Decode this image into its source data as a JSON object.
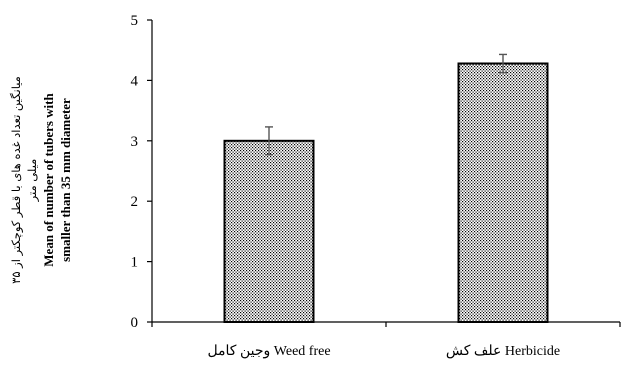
{
  "chart_data": {
    "type": "bar",
    "categories": [
      "وجین کامل Weed free",
      "علف کش Herbicide"
    ],
    "values": [
      3.0,
      4.28
    ],
    "error": [
      0.23,
      0.15
    ],
    "ylabel_fa_line1": "میانگین تعداد غده های با قطر کوچکتر از ۳۵",
    "ylabel_fa_line2": "میلی متر",
    "ylabel_en_line1": "Mean of number of tubers with",
    "ylabel_en_line2": "smaller than 35 mm diameter",
    "ylim": [
      0,
      5
    ],
    "yticks": [
      0,
      1,
      2,
      3,
      4,
      5
    ],
    "bar_pattern": "dotted",
    "grid": false,
    "legend": "none",
    "colors": {
      "bar_fill": "#ffffff",
      "bar_dots": "#000000",
      "axis": "#000000",
      "error_bar": "#555555"
    }
  }
}
